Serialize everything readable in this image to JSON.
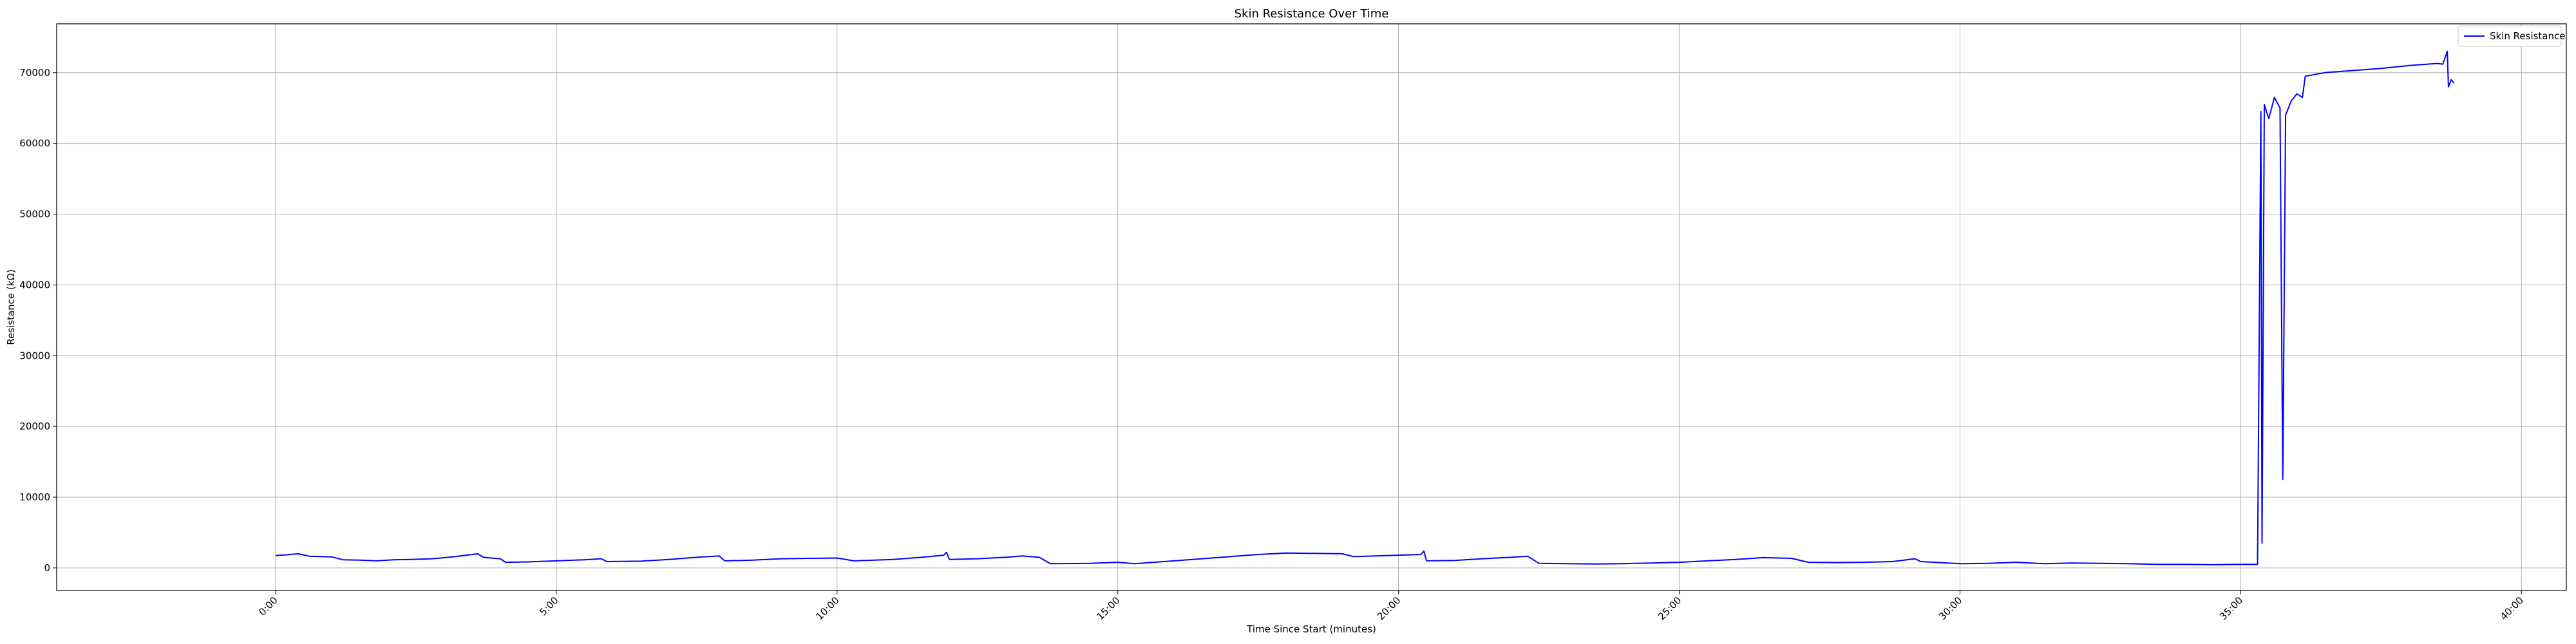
{
  "chart_data": {
    "type": "line",
    "title": "Skin Resistance Over Time",
    "xlabel": "Time Since Start (minutes)",
    "ylabel": "Resistance (kΩ)",
    "xlim": [
      -3.9,
      40.8
    ],
    "ylim": [
      -3200,
      76900
    ],
    "x_ticks": [
      0,
      5,
      10,
      15,
      20,
      25,
      30,
      35,
      40
    ],
    "x_tick_labels": [
      "0:00",
      "5:00",
      "10:00",
      "15:00",
      "20:00",
      "25:00",
      "30:00",
      "35:00",
      "40:00"
    ],
    "y_ticks": [
      0,
      10000,
      20000,
      30000,
      40000,
      50000,
      60000,
      70000
    ],
    "y_tick_labels": [
      "0",
      "10000",
      "20000",
      "30000",
      "40000",
      "50000",
      "60000",
      "70000"
    ],
    "grid": true,
    "legend_position": "top-right",
    "series": [
      {
        "name": "Skin Resistance",
        "color": "#0000ff",
        "points": [
          [
            0.0,
            1750
          ],
          [
            0.2,
            1850
          ],
          [
            0.4,
            2000
          ],
          [
            0.6,
            1650
          ],
          [
            0.8,
            1600
          ],
          [
            1.0,
            1550
          ],
          [
            1.2,
            1150
          ],
          [
            1.5,
            1100
          ],
          [
            1.8,
            1000
          ],
          [
            2.1,
            1150
          ],
          [
            2.4,
            1200
          ],
          [
            2.8,
            1300
          ],
          [
            3.2,
            1600
          ],
          [
            3.6,
            2000
          ],
          [
            3.7,
            1500
          ],
          [
            4.0,
            1300
          ],
          [
            4.1,
            800
          ],
          [
            4.5,
            850
          ],
          [
            5.0,
            1000
          ],
          [
            5.5,
            1150
          ],
          [
            5.8,
            1300
          ],
          [
            5.9,
            900
          ],
          [
            6.5,
            950
          ],
          [
            7.0,
            1200
          ],
          [
            7.5,
            1500
          ],
          [
            7.9,
            1700
          ],
          [
            8.0,
            1000
          ],
          [
            8.5,
            1100
          ],
          [
            9.0,
            1300
          ],
          [
            9.5,
            1350
          ],
          [
            10.0,
            1400
          ],
          [
            10.3,
            1000
          ],
          [
            11.0,
            1200
          ],
          [
            11.5,
            1500
          ],
          [
            11.9,
            1800
          ],
          [
            11.95,
            2200
          ],
          [
            12.0,
            1200
          ],
          [
            12.5,
            1300
          ],
          [
            13.0,
            1500
          ],
          [
            13.3,
            1700
          ],
          [
            13.6,
            1500
          ],
          [
            13.8,
            600
          ],
          [
            14.5,
            650
          ],
          [
            15.0,
            800
          ],
          [
            15.3,
            600
          ],
          [
            16.0,
            1000
          ],
          [
            16.5,
            1300
          ],
          [
            17.0,
            1600
          ],
          [
            17.5,
            1900
          ],
          [
            18.0,
            2100
          ],
          [
            18.5,
            2050
          ],
          [
            19.0,
            2000
          ],
          [
            19.2,
            1600
          ],
          [
            19.6,
            1700
          ],
          [
            20.0,
            1800
          ],
          [
            20.4,
            1900
          ],
          [
            20.45,
            2400
          ],
          [
            20.5,
            1000
          ],
          [
            21.0,
            1050
          ],
          [
            21.5,
            1300
          ],
          [
            22.0,
            1500
          ],
          [
            22.3,
            1650
          ],
          [
            22.5,
            650
          ],
          [
            23.0,
            600
          ],
          [
            23.5,
            550
          ],
          [
            24.0,
            600
          ],
          [
            24.5,
            700
          ],
          [
            25.0,
            800
          ],
          [
            25.5,
            1000
          ],
          [
            26.0,
            1200
          ],
          [
            26.5,
            1450
          ],
          [
            27.0,
            1350
          ],
          [
            27.3,
            800
          ],
          [
            27.8,
            750
          ],
          [
            28.3,
            800
          ],
          [
            28.8,
            900
          ],
          [
            29.2,
            1300
          ],
          [
            29.3,
            900
          ],
          [
            30.0,
            600
          ],
          [
            30.5,
            650
          ],
          [
            31.0,
            800
          ],
          [
            31.5,
            600
          ],
          [
            32.0,
            700
          ],
          [
            32.5,
            650
          ],
          [
            33.0,
            600
          ],
          [
            33.5,
            500
          ],
          [
            34.0,
            500
          ],
          [
            34.5,
            450
          ],
          [
            35.0,
            500
          ],
          [
            35.3,
            500
          ],
          [
            35.36,
            64500
          ],
          [
            35.38,
            3500
          ],
          [
            35.42,
            65500
          ],
          [
            35.5,
            63500
          ],
          [
            35.6,
            66500
          ],
          [
            35.7,
            65000
          ],
          [
            35.75,
            12500
          ],
          [
            35.8,
            64000
          ],
          [
            35.9,
            66000
          ],
          [
            36.0,
            67000
          ],
          [
            36.1,
            66500
          ],
          [
            36.15,
            69500
          ],
          [
            36.5,
            70000
          ],
          [
            37.0,
            70300
          ],
          [
            37.5,
            70600
          ],
          [
            38.0,
            71000
          ],
          [
            38.5,
            71300
          ],
          [
            38.6,
            71200
          ],
          [
            38.68,
            73000
          ],
          [
            38.7,
            68000
          ],
          [
            38.75,
            69000
          ],
          [
            38.8,
            68500
          ]
        ]
      }
    ]
  }
}
